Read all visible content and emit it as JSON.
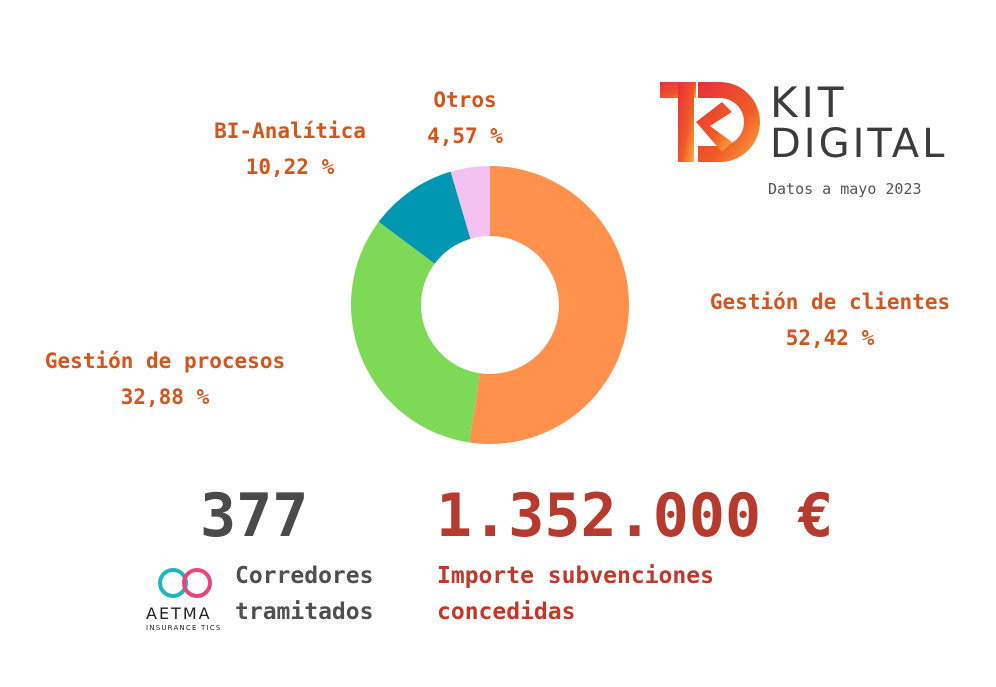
{
  "chart_data": {
    "type": "pie",
    "variant": "donut",
    "slices": [
      {
        "label": "Gestión de clientes",
        "value": 52.42,
        "value_label": "52,42 %",
        "color": "#ff914d"
      },
      {
        "label": "Gestión de procesos",
        "value": 32.88,
        "value_label": "32,88 %",
        "color": "#7ed957"
      },
      {
        "label": "BI-Analítica",
        "value": 10.22,
        "value_label": "10,22 %",
        "color": "#0097b2"
      },
      {
        "label": "Otros",
        "value": 4.57,
        "value_label": "4,57 %",
        "color": "#f4c2f0"
      }
    ],
    "start_angle": "top",
    "direction": "clockwise"
  },
  "brand": {
    "kit": "KIT",
    "digital": "DIGITAL",
    "date_note": "Datos a mayo 2023",
    "logo_icon": "kit-digital-logo-icon"
  },
  "stats": {
    "brokers_count": "377",
    "brokers_caption_line1": "Corredores",
    "brokers_caption_line2": "tramitados",
    "amount": "1.352.000 €",
    "amount_caption_line1": "Importe subvenciones",
    "amount_caption_line2": "concedidas"
  },
  "aetma": {
    "name": "AETMA",
    "tagline": "INSURANCE TICS",
    "logo_icon": "aetma-logo-icon"
  },
  "colors": {
    "label_orange": "#d4561c",
    "count_gray": "#4a4a4a",
    "amount_red": "#b73a2e",
    "caption_gray": "#4f4f4f",
    "caption_red": "#c0392b"
  }
}
